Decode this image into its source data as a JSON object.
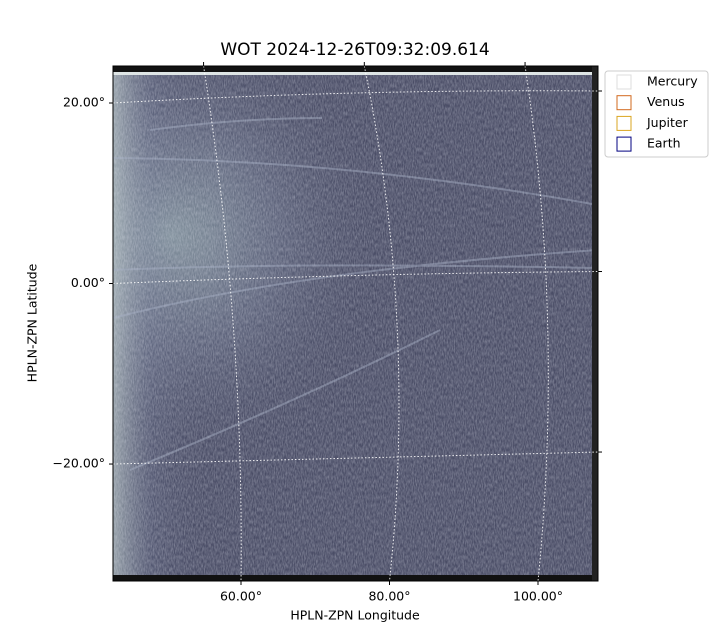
{
  "chart_data": {
    "type": "image",
    "title": "WOT 2024-12-26T09:32:09.614",
    "x_label": "HPLN-ZPN Longitude",
    "y_label": "HPLN-ZPN Latitude",
    "xlim": [
      42.76,
      108.08
    ],
    "ylim": [
      -32.96,
      24.1
    ],
    "xticks": [
      {
        "value": 60,
        "label": "60.00°"
      },
      {
        "value": 80,
        "label": "80.00°"
      },
      {
        "value": 100,
        "label": "100.00°"
      }
    ],
    "yticks": [
      {
        "value": -20,
        "label": "−20.00°"
      },
      {
        "value": 0,
        "label": "0.00°"
      },
      {
        "value": 20,
        "label": "20.00°"
      }
    ],
    "grid": true,
    "legend": "upper right",
    "series": [
      {
        "name": "Mercury",
        "color": "#dddddd"
      },
      {
        "name": "Venus",
        "color": "#d2691e"
      },
      {
        "name": "Jupiter",
        "color": "#daa520"
      },
      {
        "name": "Earth",
        "color": "#000080"
      }
    ]
  }
}
